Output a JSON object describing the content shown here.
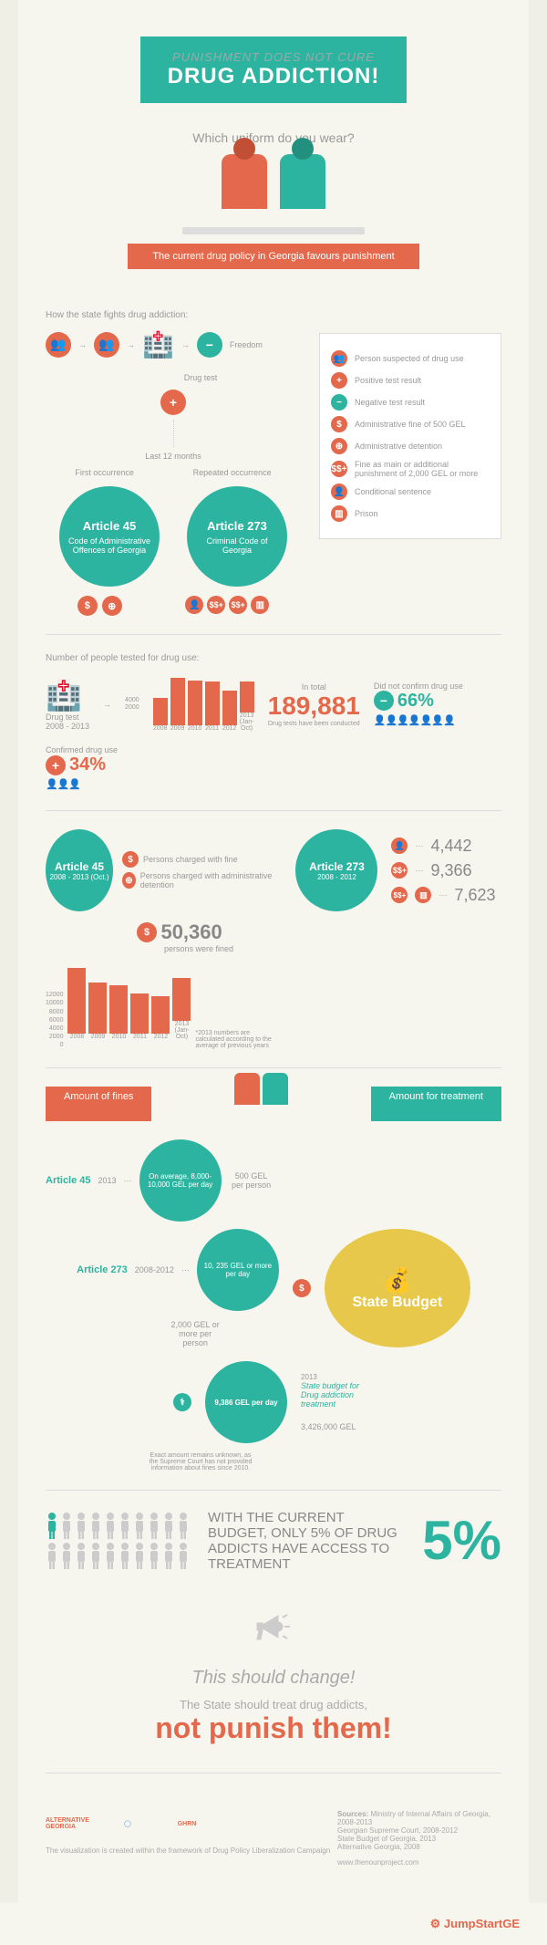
{
  "banner": {
    "subtitle": "PUNISHMENT DOES NOT CURE",
    "title": "DRUG ADDICTION!",
    "bg": "#2db4a0"
  },
  "question": "Which uniform do you wear?",
  "figures": {
    "left_color": "#e4684b",
    "right_color": "#2db4a0"
  },
  "policy_ribbon": "The current drug policy in Georgia favours punishment",
  "flow": {
    "heading": "How the state fights drug addiction:",
    "drug_test": "Drug test",
    "freedom": "Freedom",
    "last12": "Last 12 months",
    "first": "First occurrence",
    "repeated": "Repeated occurrence"
  },
  "articles": {
    "a45": {
      "title": "Article 45",
      "sub": "Code of Administrative Offences of Georgia",
      "color": "#2db4a0"
    },
    "a273": {
      "title": "Article 273",
      "sub": "Criminal Code of Georgia",
      "color": "#2db4a0"
    }
  },
  "legend": [
    {
      "icon": "👥",
      "bg": "#e4684b",
      "text": "Person suspected of drug use"
    },
    {
      "icon": "+",
      "bg": "#e4684b",
      "text": "Positive test result"
    },
    {
      "icon": "−",
      "bg": "#2db4a0",
      "text": "Negative test result"
    },
    {
      "icon": "$",
      "bg": "#e4684b",
      "text": "Administrative fine of 500 GEL"
    },
    {
      "icon": "⊕",
      "bg": "#e4684b",
      "text": "Administrative detention"
    },
    {
      "icon": "$$+",
      "bg": "#e4684b",
      "text": "Fine as main or additional punishment of 2,000 GEL or more"
    },
    {
      "icon": "👤",
      "bg": "#e4684b",
      "text": "Conditional sentence"
    },
    {
      "icon": "▥",
      "bg": "#e4684b",
      "text": "Prison"
    }
  ],
  "tested": {
    "heading": "Number of people tested for drug use:",
    "period": "Drug test\n2008 - 2013",
    "chart": {
      "years": [
        "2008",
        "2009",
        "2010",
        "2011",
        "2012",
        "2013 (Jan-Oct)"
      ],
      "values": [
        2200,
        3800,
        3600,
        3500,
        2800,
        2500
      ],
      "max": 4000,
      "ticks": [
        2000,
        4000
      ],
      "color": "#e4684b"
    },
    "total_label": "In total",
    "total_num": "189,881",
    "total_sub": "Drug tests have been conducted",
    "neg": {
      "label": "Did not confirm drug use",
      "pct": "66%",
      "color": "#2db4a0"
    },
    "pos": {
      "label": "Confirmed drug use",
      "pct": "34%",
      "color": "#e4684b"
    }
  },
  "art45_detail": {
    "title": "Article 45",
    "period": "2008 - 2013 (Oct.)",
    "fine_label": "Persons charged with fine",
    "detention_label": "Persons charged with administrative detention",
    "fined_num": "50,360",
    "fined_sub": "persons were fined",
    "note": "*2013 numbers are calculated according to the average of previous years",
    "chart": {
      "years": [
        "2008",
        "2009",
        "2010",
        "2011",
        "2012",
        "2013 (Jan-Oct)"
      ],
      "values": [
        11500,
        9000,
        8500,
        7000,
        6500,
        7500
      ],
      "max": 12000,
      "ticks": [
        0,
        2000,
        4000,
        6000,
        8000,
        10000,
        12000
      ],
      "color": "#e4684b"
    }
  },
  "art273_detail": {
    "title": "Article 273",
    "period": "2008 - 2012",
    "rows": [
      {
        "icon": "👤",
        "val": "4,442"
      },
      {
        "icon": "$$+",
        "val": "9,366"
      },
      {
        "icon_combo": "$$+▥",
        "val": "7,623"
      }
    ]
  },
  "amounts": {
    "left": "Amount of fines",
    "right": "Amount for treatment"
  },
  "budget": {
    "title": "State Budget",
    "a45_label": "Article 45",
    "a45_year": "2013",
    "a45_per": "500 GEL per person",
    "a45_avg": "On average, 8,000-10,000 GEL per day",
    "a273_label": "Article 273",
    "a273_year": "2008-2012",
    "a273_per": "2,000 GEL or more per person",
    "a273_avg": "10, 235 GEL or more per day",
    "a273_note": "Exact amount remains unknown, as the Supreme Court has not provided information about fines since 2010.",
    "treat_per_day": "9,386 GEL per day",
    "treat_year": "2013",
    "treat_label": "State budget for Drug addiction treatment",
    "treat_total": "3,426,000 GEL"
  },
  "access": {
    "text": "With the current budget, only 5% of drug addicts have access to treatment",
    "pct": "5%"
  },
  "change": {
    "line1": "This should change!",
    "line2": "The State should treat drug addicts,",
    "line3": "not punish them!"
  },
  "footer": {
    "viz_note": "The visualization is created within the framework of Drug Policy Liberalization Campaign",
    "sources_label": "Sources:",
    "sources": "Ministry of Internal Affairs of Georgia, 2008-2013\nGeorgian Supreme Court, 2008-2012\nState Budget of Georgia, 2013\nAlternative Georgia, 2008",
    "url": "www.thenounproject.com",
    "logos": [
      "ALTERNATIVE GEORGIA",
      "OSGF",
      "GHRN"
    ]
  },
  "jumpstart": "JumpStartGE",
  "colors": {
    "teal": "#2db4a0",
    "coral": "#e4684b",
    "yellow": "#e8c84a",
    "bg": "#f7f6ee",
    "text": "#999"
  }
}
